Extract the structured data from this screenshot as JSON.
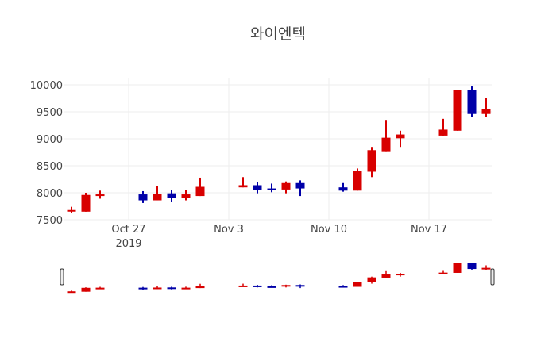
{
  "chart_data": {
    "type": "candlestick",
    "title": "와이엔텍",
    "xlabel": "",
    "ylabel": "",
    "ylim": [
      7500,
      10100
    ],
    "xlim": [
      "2019-10-22",
      "2019-11-21"
    ],
    "y_ticks": [
      "7500",
      "8000",
      "8500",
      "9000",
      "9500",
      "10000"
    ],
    "x_ticks": [
      {
        "date": "2019-10-27",
        "label": "Oct 27",
        "sublabel": "2019"
      },
      {
        "date": "2019-11-03",
        "label": "Nov 3"
      },
      {
        "date": "2019-11-10",
        "label": "Nov 10"
      },
      {
        "date": "2019-11-17",
        "label": "Nov 17"
      }
    ],
    "grid": true,
    "range_slider": true,
    "colors": {
      "increasing": "#d80000",
      "decreasing": "#0000a8",
      "grid": "#eeeeee"
    },
    "candles": [
      {
        "date": "2019-10-23",
        "open": 7660,
        "high": 7740,
        "low": 7630,
        "close": 7680
      },
      {
        "date": "2019-10-24",
        "open": 7650,
        "high": 8000,
        "low": 7650,
        "close": 7960
      },
      {
        "date": "2019-10-25",
        "open": 7940,
        "high": 8040,
        "low": 7890,
        "close": 7970
      },
      {
        "date": "2019-10-28",
        "open": 7970,
        "high": 8030,
        "low": 7810,
        "close": 7860
      },
      {
        "date": "2019-10-29",
        "open": 7860,
        "high": 8120,
        "low": 7860,
        "close": 7980
      },
      {
        "date": "2019-10-30",
        "open": 7990,
        "high": 8050,
        "low": 7830,
        "close": 7900
      },
      {
        "date": "2019-10-31",
        "open": 7900,
        "high": 8050,
        "low": 7860,
        "close": 7970
      },
      {
        "date": "2019-11-01",
        "open": 7940,
        "high": 8280,
        "low": 7940,
        "close": 8110
      },
      {
        "date": "2019-11-04",
        "open": 8100,
        "high": 8290,
        "low": 8100,
        "close": 8140
      },
      {
        "date": "2019-11-05",
        "open": 8140,
        "high": 8200,
        "low": 7990,
        "close": 8050
      },
      {
        "date": "2019-11-06",
        "open": 8080,
        "high": 8170,
        "low": 8010,
        "close": 8050
      },
      {
        "date": "2019-11-07",
        "open": 8060,
        "high": 8210,
        "low": 7990,
        "close": 8180
      },
      {
        "date": "2019-11-08",
        "open": 8180,
        "high": 8230,
        "low": 7940,
        "close": 8080
      },
      {
        "date": "2019-11-11",
        "open": 8100,
        "high": 8180,
        "low": 8020,
        "close": 8040
      },
      {
        "date": "2019-11-12",
        "open": 8040,
        "high": 8450,
        "low": 8040,
        "close": 8410
      },
      {
        "date": "2019-11-13",
        "open": 8390,
        "high": 8850,
        "low": 8290,
        "close": 8790
      },
      {
        "date": "2019-11-14",
        "open": 8770,
        "high": 9350,
        "low": 8770,
        "close": 9020
      },
      {
        "date": "2019-11-15",
        "open": 9010,
        "high": 9150,
        "low": 8850,
        "close": 9080
      },
      {
        "date": "2019-11-18",
        "open": 9060,
        "high": 9370,
        "low": 9060,
        "close": 9170
      },
      {
        "date": "2019-11-19",
        "open": 9150,
        "high": 9910,
        "low": 9150,
        "close": 9910
      },
      {
        "date": "2019-11-20",
        "open": 9910,
        "high": 9970,
        "low": 9400,
        "close": 9460
      },
      {
        "date": "2019-11-21",
        "open": 9460,
        "high": 9750,
        "low": 9400,
        "close": 9550
      }
    ]
  }
}
